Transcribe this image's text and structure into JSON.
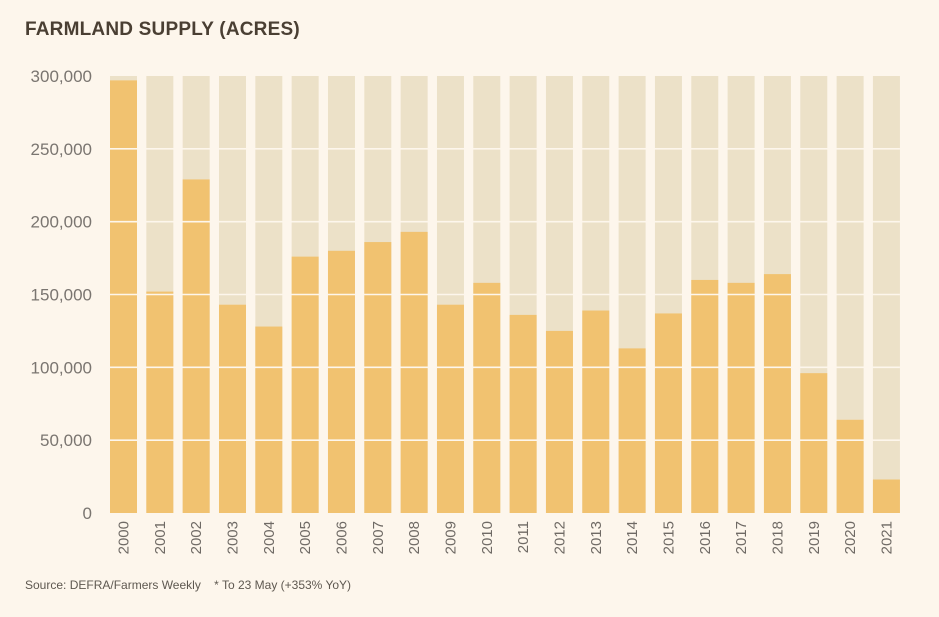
{
  "colors": {
    "background": "#fdf6ec",
    "bar": "#f1c270",
    "bar_track": "#ece1c8",
    "gridline": "#fdf6ec",
    "title": "#4a3f33",
    "tick_text": "#7a7570"
  },
  "footer": {
    "source": "Source: DEFRA/Farmers Weekly",
    "note": "* To 23 May (+353% YoY)"
  },
  "chart_data": {
    "type": "bar",
    "title": "FARMLAND SUPPLY (ACRES)",
    "xlabel": "",
    "ylabel": "",
    "ylim": [
      0,
      300000
    ],
    "grid": true,
    "yticks": [
      0,
      50000,
      100000,
      150000,
      200000,
      250000,
      300000
    ],
    "ytick_labels": [
      "0",
      "50,000",
      "100,000",
      "150,000",
      "200,000",
      "250,000",
      "300,000"
    ],
    "categories": [
      "2000",
      "2001",
      "2002",
      "2003",
      "2004",
      "2005",
      "2006",
      "2007",
      "2008",
      "2009",
      "2010",
      "2011",
      "2012",
      "2013",
      "2014",
      "2015",
      "2016",
      "2017",
      "2018",
      "2019",
      "2020",
      "2021"
    ],
    "values": [
      297000,
      152000,
      229000,
      143000,
      128000,
      176000,
      180000,
      186000,
      193000,
      143000,
      158000,
      136000,
      125000,
      139000,
      113000,
      137000,
      160000,
      158000,
      164000,
      96000,
      64000,
      23000
    ]
  }
}
